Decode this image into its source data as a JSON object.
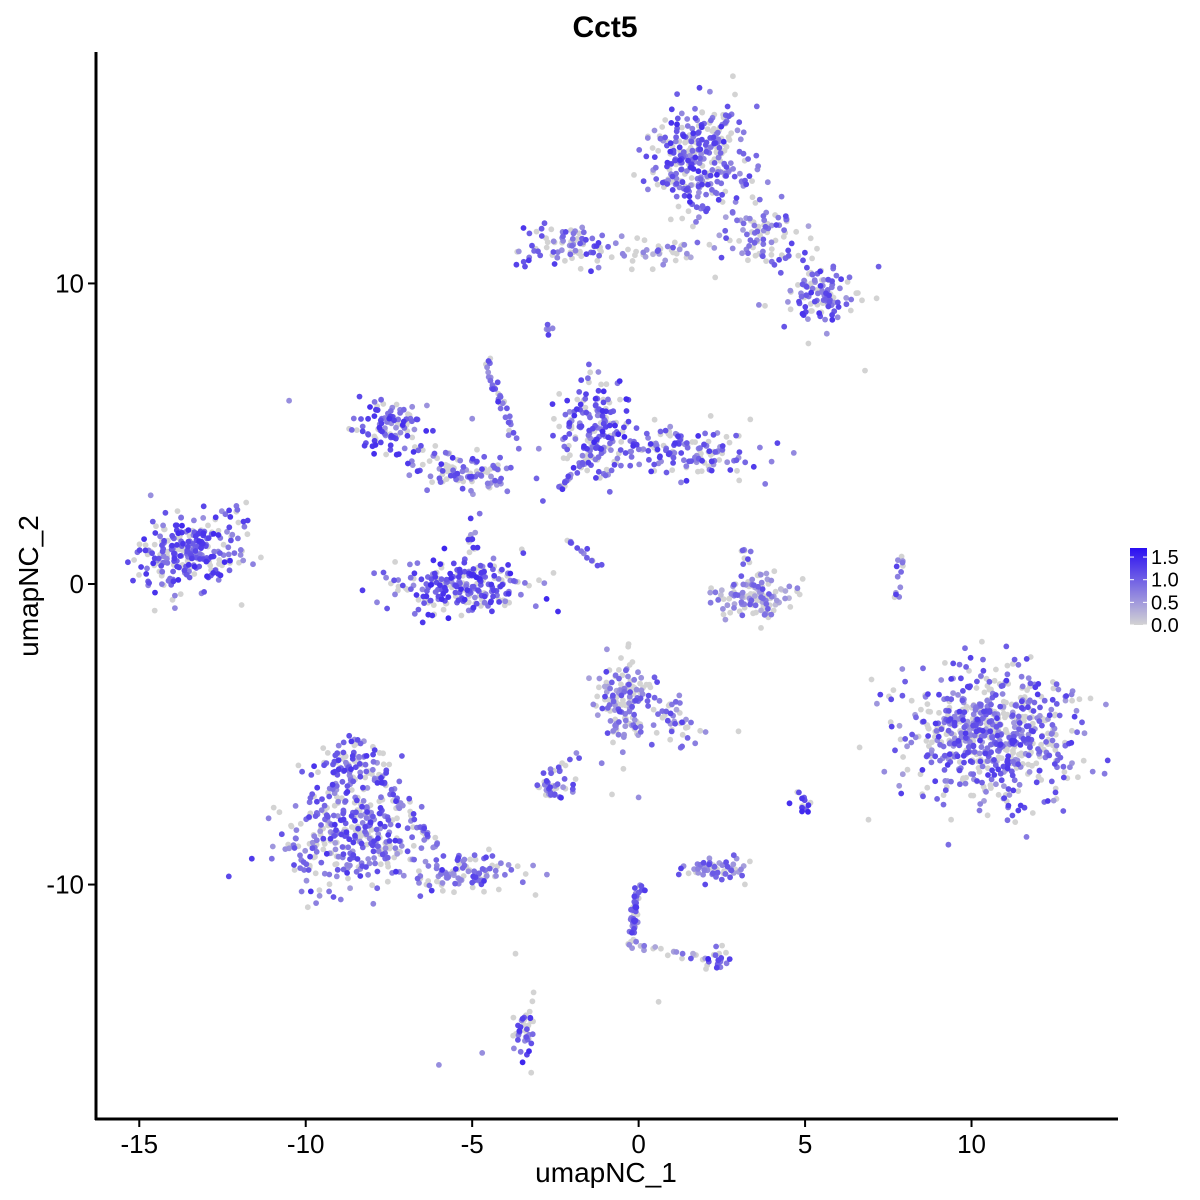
{
  "chart_data": {
    "type": "scatter",
    "title": "Cct5",
    "xlabel": "umapNC_1",
    "ylabel": "umapNC_2",
    "xlim": [
      -16.3,
      14.4
    ],
    "ylim": [
      -17.8,
      17.7
    ],
    "x_ticks": [
      -15,
      -10,
      -5,
      0,
      5,
      10
    ],
    "x_tick_labels": [
      "-15",
      "-10",
      "-5",
      "0",
      "5",
      "10"
    ],
    "y_ticks": [
      -10,
      0,
      10
    ],
    "y_tick_labels": [
      "-10",
      "0",
      "10"
    ],
    "grid": false,
    "legend": {
      "placement": "right",
      "type": "colorbar",
      "ticks": [
        0.0,
        0.5,
        1.0,
        1.5
      ],
      "tick_labels": [
        "0.0",
        "0.5",
        "1.0",
        "1.5"
      ],
      "range": [
        0,
        1.7
      ],
      "color_low": "#d3d3d3",
      "color_high": "#2a0ff2"
    },
    "color_scale": {
      "low": "#d3d3d3",
      "high": "#2a0ff2",
      "min": 0,
      "max": 1.7
    },
    "clusters": [
      {
        "cx": 1.8,
        "cy": 14.1,
        "sx": 0.75,
        "sy": 1.0,
        "n": 320,
        "expr": 0.9
      },
      {
        "cx": 3.7,
        "cy": 11.6,
        "sx": 0.7,
        "sy": 0.6,
        "n": 90,
        "expr": 0.6
      },
      {
        "cx": 5.4,
        "cy": 9.6,
        "sx": 0.6,
        "sy": 0.5,
        "n": 110,
        "expr": 0.85
      },
      {
        "cx": -2.0,
        "cy": 11.3,
        "sx": 0.8,
        "sy": 0.35,
        "n": 90,
        "expr": 0.85
      },
      {
        "cx": 0.8,
        "cy": 11.1,
        "sx": 0.6,
        "sy": 0.3,
        "n": 35,
        "expr": 0.4
      },
      {
        "cx": -7.4,
        "cy": 5.2,
        "sx": 0.55,
        "sy": 0.45,
        "n": 110,
        "expr": 0.9
      },
      {
        "cx": -5.2,
        "cy": 3.8,
        "sx": 0.8,
        "sy": 0.35,
        "n": 100,
        "expr": 0.8
      },
      {
        "cx": -1.3,
        "cy": 5.2,
        "sx": 0.55,
        "sy": 0.8,
        "n": 170,
        "expr": 0.95
      },
      {
        "cx": 1.5,
        "cy": 4.4,
        "sx": 1.1,
        "sy": 0.45,
        "n": 150,
        "expr": 0.85
      },
      {
        "cx": -5.3,
        "cy": -0.1,
        "sx": 1.0,
        "sy": 0.45,
        "n": 240,
        "expr": 1.0
      },
      {
        "cx": -13.5,
        "cy": 1.0,
        "sx": 0.8,
        "sy": 0.6,
        "n": 260,
        "expr": 0.95
      },
      {
        "cx": 3.5,
        "cy": -0.4,
        "sx": 0.55,
        "sy": 0.35,
        "n": 120,
        "expr": 0.3
      },
      {
        "cx": 10.6,
        "cy": -5.0,
        "sx": 1.2,
        "sy": 1.1,
        "n": 700,
        "expr": 0.75
      },
      {
        "cx": -8.7,
        "cy": -8.4,
        "sx": 1.0,
        "sy": 0.9,
        "n": 360,
        "expr": 0.8
      },
      {
        "cx": -8.5,
        "cy": -6.0,
        "sx": 0.5,
        "sy": 0.5,
        "n": 90,
        "expr": 0.8
      },
      {
        "cx": -5.2,
        "cy": -9.6,
        "sx": 0.9,
        "sy": 0.3,
        "n": 100,
        "expr": 0.8
      },
      {
        "cx": -0.4,
        "cy": -3.9,
        "sx": 0.4,
        "sy": 0.7,
        "n": 150,
        "expr": 0.6
      },
      {
        "cx": 1.0,
        "cy": -4.6,
        "sx": 0.4,
        "sy": 0.4,
        "n": 40,
        "expr": 0.6
      },
      {
        "cx": 2.4,
        "cy": -9.5,
        "sx": 0.55,
        "sy": 0.2,
        "n": 60,
        "expr": 0.7
      },
      {
        "cx": -2.5,
        "cy": -6.8,
        "sx": 0.25,
        "sy": 0.2,
        "n": 35,
        "expr": 0.8
      },
      {
        "cx": 5.0,
        "cy": -7.3,
        "sx": 0.15,
        "sy": 0.2,
        "n": 14,
        "expr": 1.0
      },
      {
        "cx": 2.4,
        "cy": -12.5,
        "sx": 0.2,
        "sy": 0.25,
        "n": 18,
        "expr": 1.0
      },
      {
        "cx": -3.4,
        "cy": -14.8,
        "sx": 0.2,
        "sy": 0.5,
        "n": 40,
        "expr": 1.0
      },
      {
        "cx": -12.0,
        "cy": 2.3,
        "sx": 0.3,
        "sy": 0.3,
        "n": 14,
        "expr": 0.8
      },
      {
        "cx": -2.7,
        "cy": 8.6,
        "sx": 0.12,
        "sy": 0.12,
        "n": 6,
        "expr": 0.8
      }
    ],
    "streaks": [
      {
        "x1": -4.6,
        "y1": 7.4,
        "x2": -3.6,
        "y2": 4.5,
        "n": 35,
        "expr": 0.9
      },
      {
        "x1": -2.8,
        "y1": 2.8,
        "x2": -1.2,
        "y2": 4.5,
        "n": 30,
        "expr": 0.8
      },
      {
        "x1": -2.2,
        "y1": 1.5,
        "x2": -1.1,
        "y2": 0.7,
        "n": 15,
        "expr": 0.8
      },
      {
        "x1": 0.0,
        "y1": -10.0,
        "x2": -0.2,
        "y2": -12.0,
        "n": 50,
        "expr": 0.9
      },
      {
        "x1": -0.1,
        "y1": -12.0,
        "x2": 2.2,
        "y2": -12.5,
        "n": 20,
        "expr": 0.3
      },
      {
        "x1": -2.8,
        "y1": -6.3,
        "x2": -1.7,
        "y2": -5.6,
        "n": 12,
        "expr": 0.8
      },
      {
        "x1": 3.0,
        "y1": 1.3,
        "x2": 4.0,
        "y2": -1.2,
        "n": 25,
        "expr": 0.5
      },
      {
        "x1": 7.9,
        "y1": 0.9,
        "x2": 7.7,
        "y2": -0.5,
        "n": 14,
        "expr": 0.7
      },
      {
        "x1": -5.0,
        "y1": 2.5,
        "x2": -5.0,
        "y2": 1.0,
        "n": 14,
        "expr": 0.8
      },
      {
        "x1": -7.8,
        "y1": -6.5,
        "x2": -6.0,
        "y2": -8.8,
        "n": 40,
        "expr": 0.8
      }
    ],
    "singletons": [
      [
        -10.5,
        6.1
      ],
      [
        6.8,
        7.1
      ],
      [
        5.1,
        8.0
      ],
      [
        2.3,
        10.2
      ],
      [
        -3.7,
        -12.3
      ],
      [
        -6.0,
        -16.0
      ],
      [
        -4.7,
        -15.6
      ],
      [
        0.6,
        -13.9
      ],
      [
        3.0,
        -4.9
      ],
      [
        0.0,
        -7.1
      ],
      [
        -0.8,
        -7.0
      ],
      [
        -5.0,
        5.5
      ],
      [
        -3.0,
        4.5
      ]
    ]
  }
}
